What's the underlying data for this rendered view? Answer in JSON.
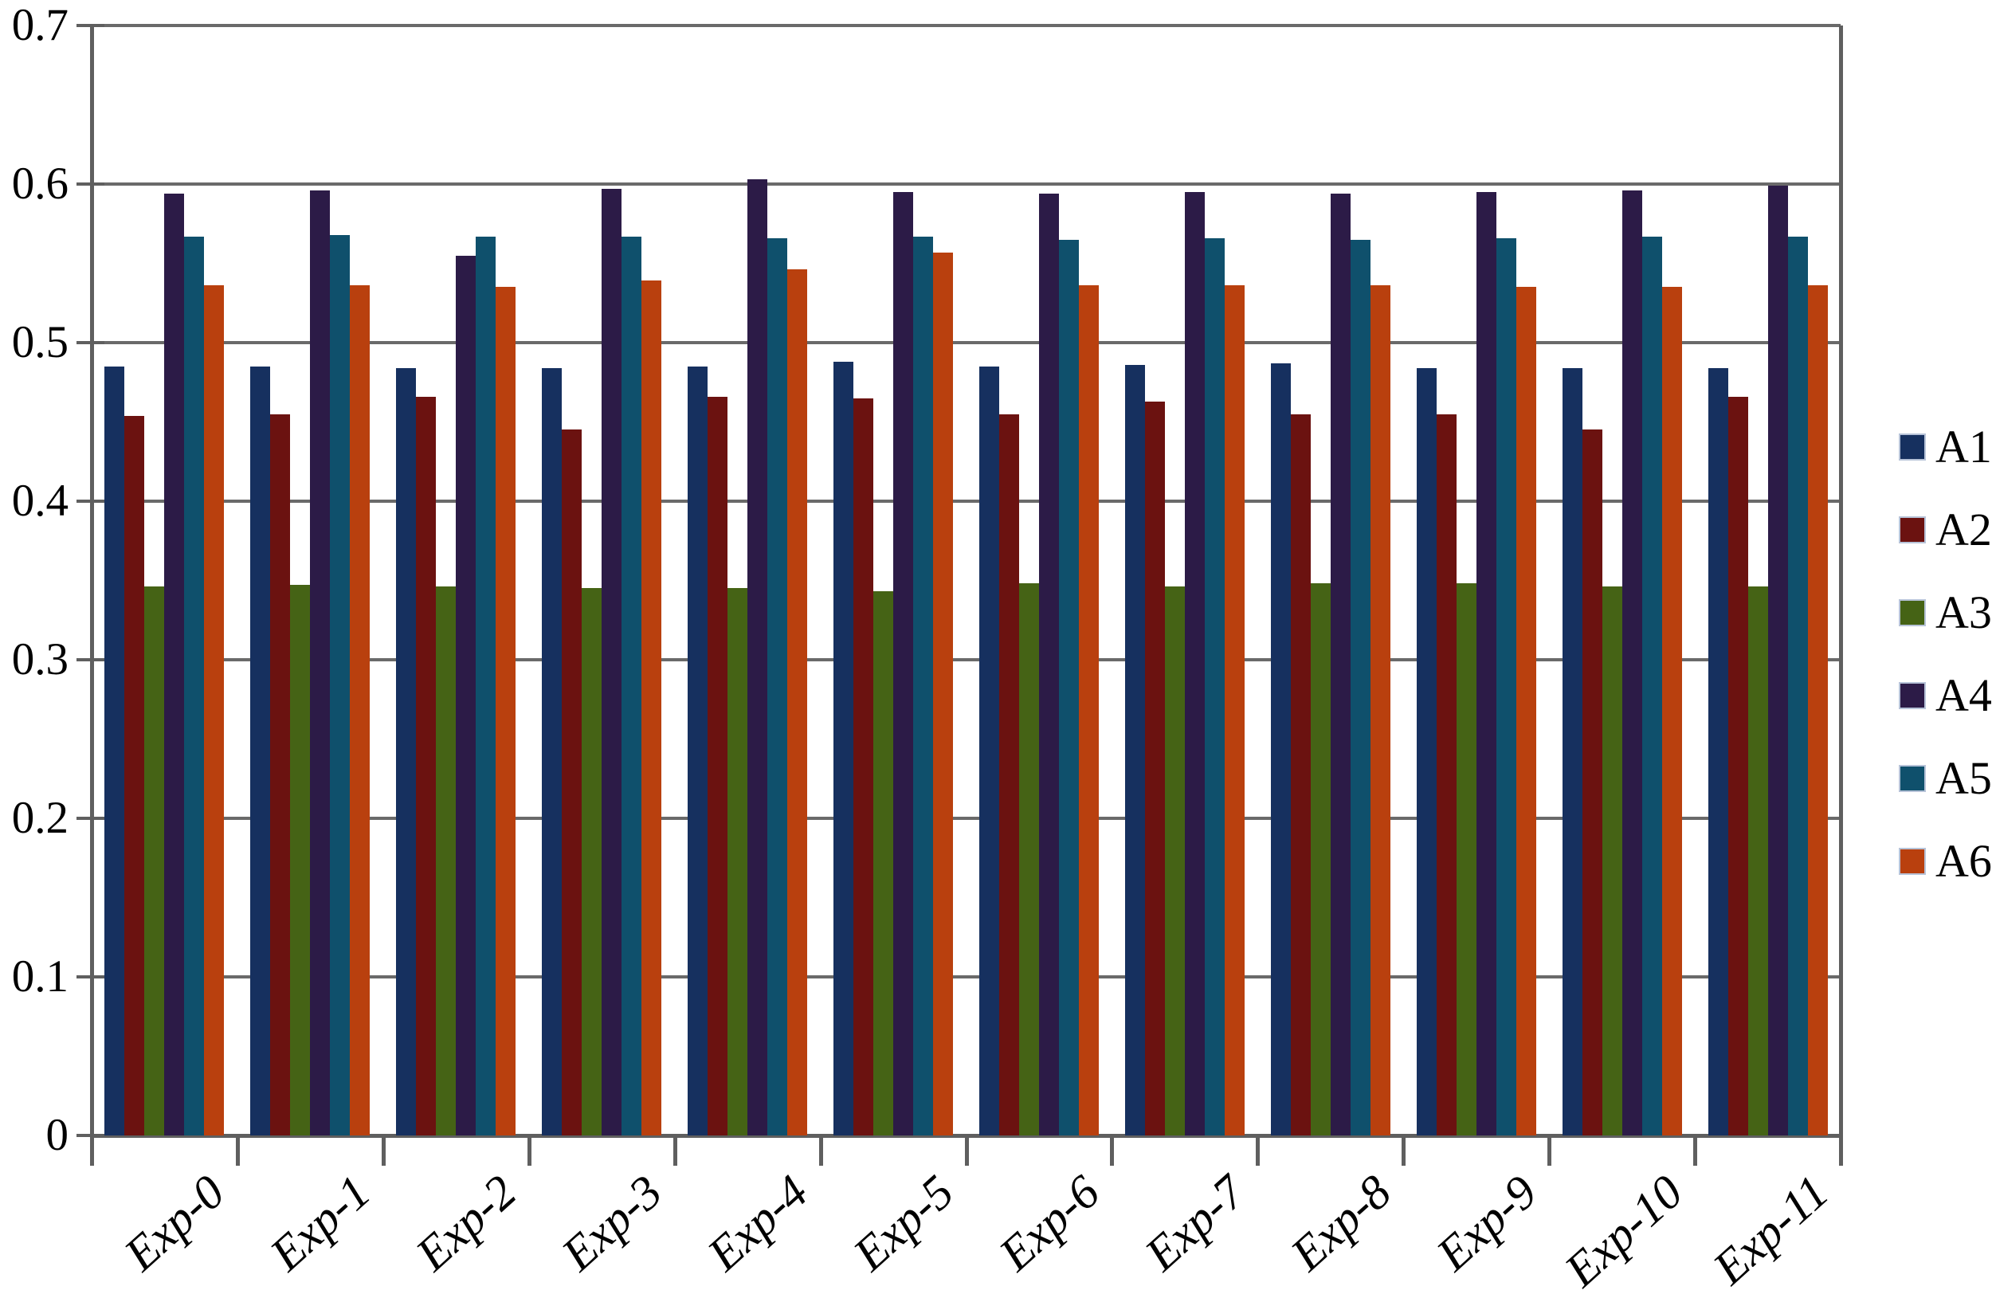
{
  "chart_data": {
    "type": "bar",
    "title": "",
    "xlabel": "",
    "ylabel": "",
    "grid": "horizontal",
    "legend_position": "right",
    "x_label_rotation_deg": -42,
    "categories": [
      "Exp-0",
      "Exp-1",
      "Exp-2",
      "Exp-3",
      "Exp-4",
      "Exp-5",
      "Exp-6",
      "Exp-7",
      "Exp-8",
      "Exp-9",
      "Exp-10",
      "Exp-11"
    ],
    "series": [
      {
        "name": "A1",
        "color": "#16305f",
        "values": [
          0.485,
          0.485,
          0.484,
          0.484,
          0.485,
          0.488,
          0.485,
          0.486,
          0.487,
          0.484,
          0.484,
          0.484
        ]
      },
      {
        "name": "A2",
        "color": "#6b1210",
        "values": [
          0.454,
          0.455,
          0.466,
          0.445,
          0.466,
          0.465,
          0.455,
          0.463,
          0.455,
          0.455,
          0.445,
          0.466
        ]
      },
      {
        "name": "A3",
        "color": "#456315",
        "values": [
          0.346,
          0.347,
          0.346,
          0.345,
          0.345,
          0.343,
          0.348,
          0.346,
          0.348,
          0.348,
          0.346,
          0.346
        ]
      },
      {
        "name": "A4",
        "color": "#2c1b47",
        "values": [
          0.594,
          0.596,
          0.555,
          0.597,
          0.603,
          0.595,
          0.594,
          0.595,
          0.594,
          0.595,
          0.596,
          0.599
        ]
      },
      {
        "name": "A5",
        "color": "#0f506c",
        "values": [
          0.567,
          0.568,
          0.567,
          0.567,
          0.566,
          0.567,
          0.565,
          0.566,
          0.565,
          0.566,
          0.567,
          0.567
        ]
      },
      {
        "name": "A6",
        "color": "#b9400e",
        "values": [
          0.536,
          0.536,
          0.535,
          0.539,
          0.546,
          0.557,
          0.536,
          0.536,
          0.536,
          0.535,
          0.535,
          0.536
        ]
      }
    ],
    "y_axis": {
      "min": 0,
      "max": 0.7,
      "tick_step": 0.1,
      "tick_labels": [
        "0",
        "0.1",
        "0.2",
        "0.3",
        "0.4",
        "0.5",
        "0.6",
        "0.7"
      ]
    }
  }
}
